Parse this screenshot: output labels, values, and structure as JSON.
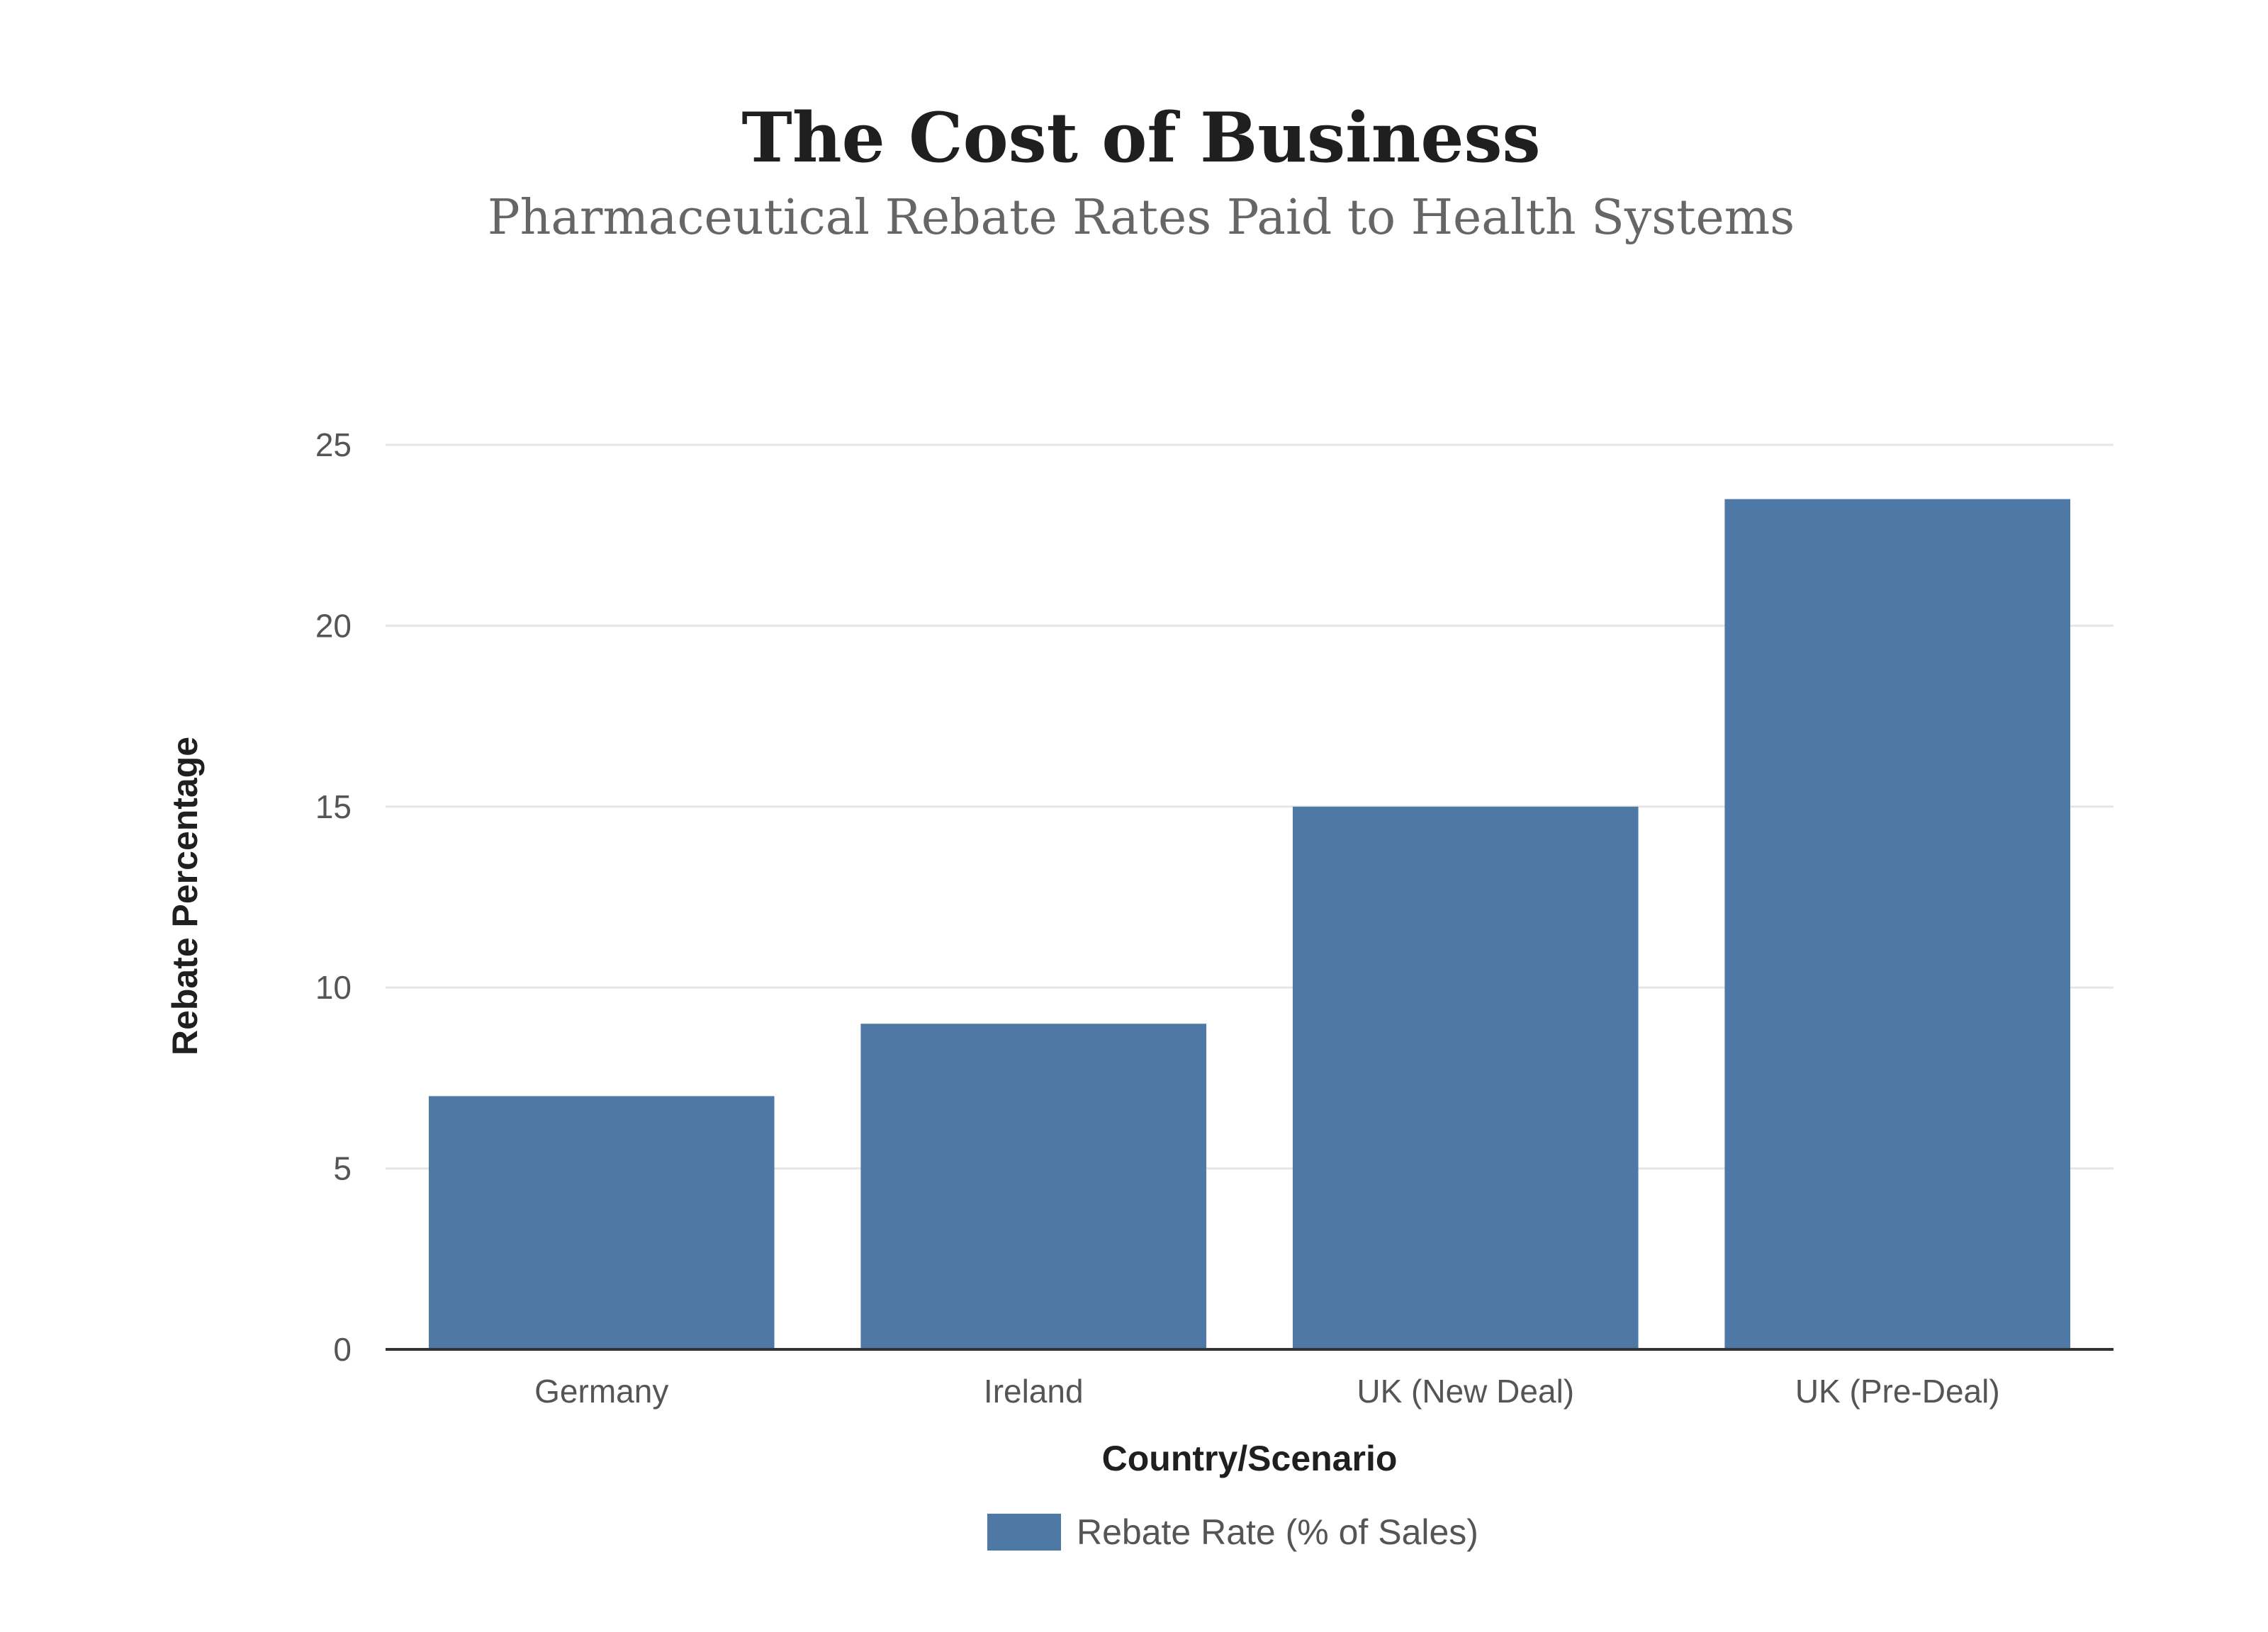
{
  "chart_data": {
    "type": "bar",
    "title": "The Cost of Business",
    "subtitle": "Pharmaceutical Rebate Rates Paid to Health Systems",
    "xlabel": "Country/Scenario",
    "ylabel": "Rebate Percentage",
    "categories": [
      "Germany",
      "Ireland",
      "UK (New Deal)",
      "UK (Pre-Deal)"
    ],
    "series": [
      {
        "name": "Rebate Rate (% of Sales)",
        "values": [
          7,
          9,
          15,
          23.5
        ]
      }
    ],
    "ylim": [
      0,
      25
    ],
    "yticks": [
      "0",
      "5",
      "10",
      "15",
      "20",
      "25"
    ],
    "grid": true,
    "legend_position": "bottom-center",
    "colors": {
      "bar": "#4e78a6",
      "grid": "#e6e6e6",
      "axis": "#333333"
    }
  }
}
